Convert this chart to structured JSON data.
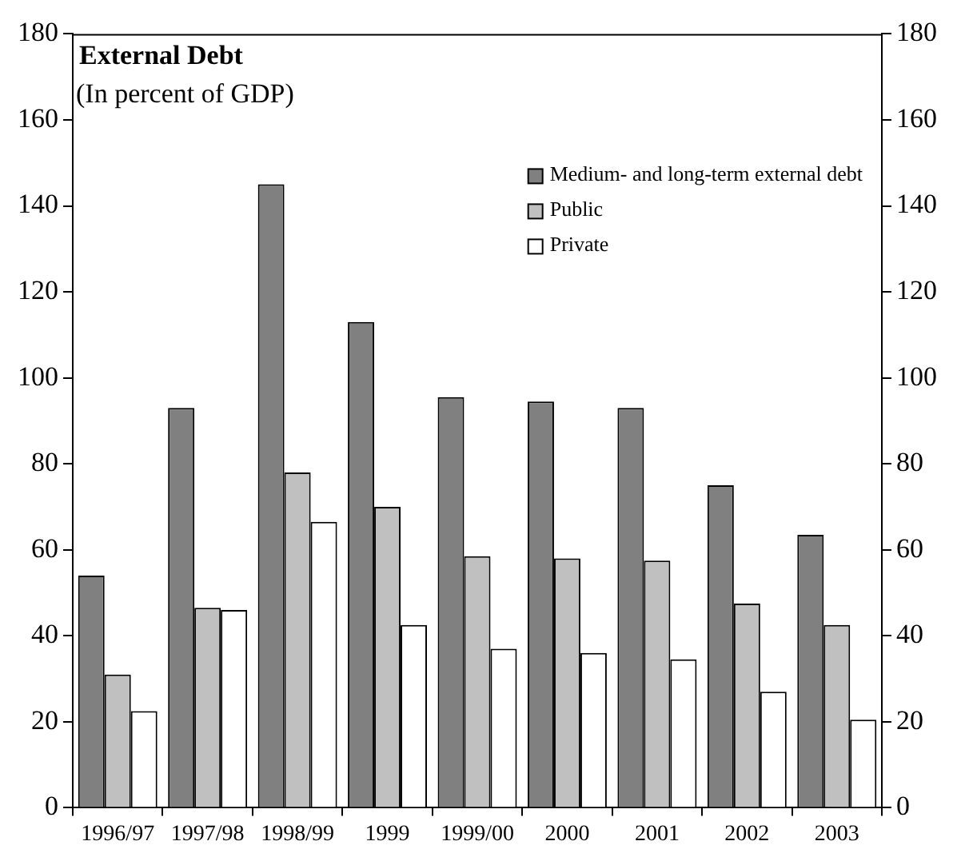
{
  "chart_data": {
    "type": "bar",
    "title": "External Debt",
    "subtitle": "(In percent of GDP)",
    "categories": [
      "1996/97",
      "1997/98",
      "1998/99",
      "1999",
      "1999/00",
      "2000",
      "2001",
      "2002",
      "2003"
    ],
    "series": [
      {
        "name": "Medium- and long-term external debt",
        "color": "#808080",
        "values": [
          54,
          93,
          145,
          113,
          95.5,
          94.5,
          93,
          75,
          63.5
        ]
      },
      {
        "name": "Public",
        "color": "#c0c0c0",
        "values": [
          31,
          46.5,
          78,
          70,
          58.5,
          58,
          57.5,
          47.5,
          42.5
        ]
      },
      {
        "name": "Private",
        "color": "#ffffff",
        "values": [
          22.5,
          46,
          66.5,
          42.5,
          37,
          36,
          34.5,
          27,
          20.5
        ]
      }
    ],
    "ylim": [
      0,
      180
    ],
    "yticks": [
      0,
      20,
      40,
      60,
      80,
      100,
      120,
      140,
      160,
      180
    ],
    "y2lim": [
      0,
      180
    ],
    "y2ticks": [
      0,
      20,
      40,
      60,
      80,
      100,
      120,
      140,
      160,
      180
    ],
    "grid": false,
    "legend": "top right"
  }
}
